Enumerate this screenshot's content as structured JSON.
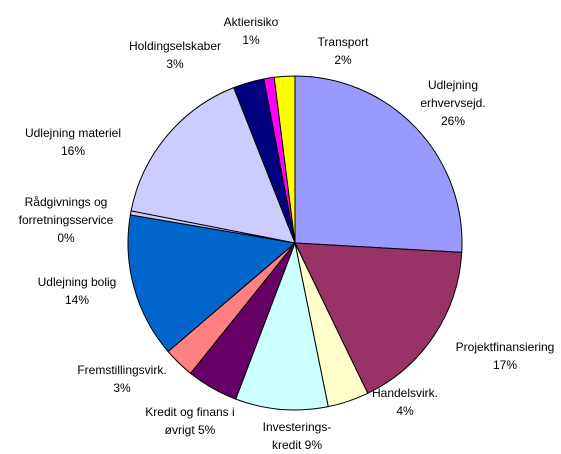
{
  "chart_data": {
    "type": "pie",
    "categories": [
      "Udlejning erhvervsejd.",
      "Projektfinansiering",
      "Handelsvirk.",
      "Investerings-kredit",
      "Kredit og finans i øvrigt",
      "Fremstillingsvirk.",
      "Udlejning bolig",
      "Rådgivnings og forretningsservice",
      "Udlejning materiel",
      "Holdingselskaber",
      "Aktierisiko",
      "Transport"
    ],
    "values": [
      26,
      17,
      4,
      9,
      5,
      3,
      14,
      0.4,
      16,
      3,
      1,
      2
    ],
    "value_labels": [
      "26%",
      "17%",
      "4%",
      "9%",
      "5%",
      "3%",
      "14%",
      "0%",
      "16%",
      "3%",
      "1%",
      "2%"
    ],
    "colors": [
      "#9999ff",
      "#993366",
      "#ffffcc",
      "#ccffff",
      "#660066",
      "#ff8080",
      "#0066cc",
      "#ccccff",
      "#ccccff",
      "#000080",
      "#ff00ff",
      "#ffff00"
    ]
  }
}
